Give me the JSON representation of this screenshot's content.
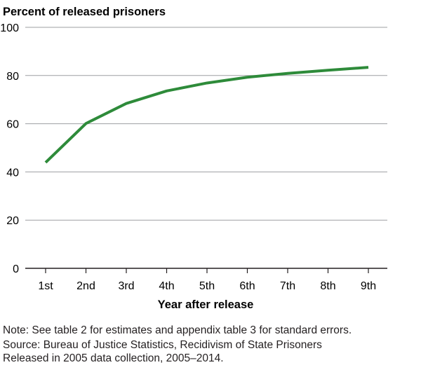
{
  "chart_data": {
    "type": "line",
    "title": "",
    "ylabel": "Percent of released prisoners",
    "xlabel": "Year after release",
    "categories": [
      "1st",
      "2nd",
      "3rd",
      "4th",
      "5th",
      "6th",
      "7th",
      "8th",
      "9th"
    ],
    "series": [
      {
        "values": [
          43.9,
          60.1,
          68.4,
          73.6,
          76.9,
          79.3,
          80.9,
          82.2,
          83.4
        ]
      }
    ],
    "ylim": [
      0,
      100
    ],
    "yticks": [
      0,
      20,
      40,
      60,
      80,
      100
    ],
    "grid": true,
    "legend": "none",
    "line_color": "#2e8b3a",
    "grid_color": "#9d9fa2"
  },
  "notes": {
    "note": "Note: See table 2 for estimates and appendix table 3 for standard errors.",
    "source": "Source: Bureau of Justice Statistics, Recidivism of State Prisoners\nReleased in 2005 data collection, 2005–2014."
  }
}
